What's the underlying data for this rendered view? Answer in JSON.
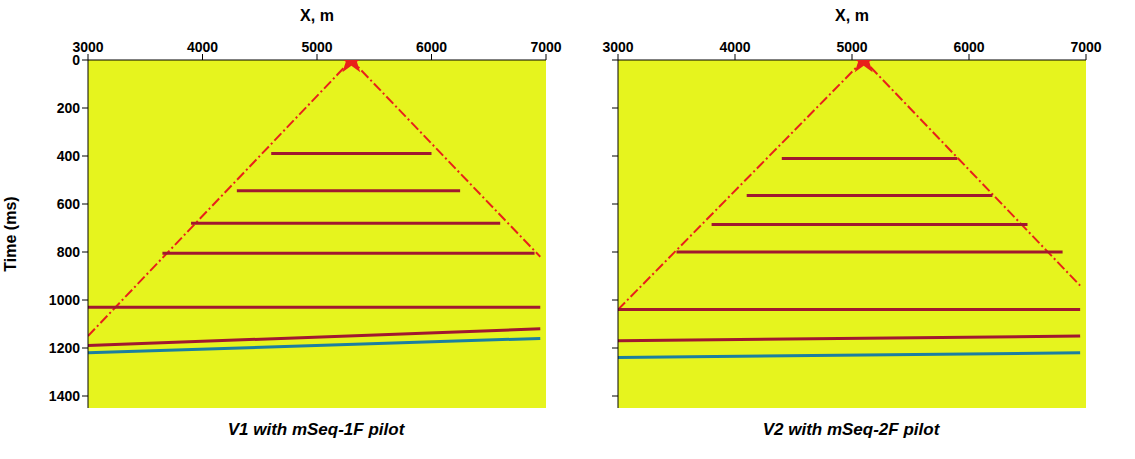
{
  "chart_data": [
    {
      "type": "line",
      "title": "V1 with mSeq-1F pilot",
      "x_label": "X, m",
      "y_label": "Time (ms)",
      "xlim": [
        3000,
        7000
      ],
      "xticks": [
        3000,
        4000,
        5000,
        6000,
        7000
      ],
      "ylim": [
        0,
        1450
      ],
      "yticks": [
        0,
        200,
        400,
        600,
        800,
        1000,
        1200,
        1400
      ],
      "grid": false,
      "series": [
        {
          "type": "line",
          "color": "#e8201a",
          "line_style": "dashed",
          "x": [
            3000,
            5300,
            6950
          ],
          "values": [
            1150,
            0,
            820
          ]
        },
        {
          "type": "line",
          "color": "#a01830",
          "line_style": "solid",
          "x": [
            4600,
            6000
          ],
          "values": [
            390,
            390
          ]
        },
        {
          "type": "line",
          "color": "#a01830",
          "line_style": "solid",
          "x": [
            4300,
            6250
          ],
          "values": [
            545,
            545
          ]
        },
        {
          "type": "line",
          "color": "#a01830",
          "line_style": "solid",
          "x": [
            3900,
            6600
          ],
          "values": [
            680,
            680
          ]
        },
        {
          "type": "line",
          "color": "#a01830",
          "line_style": "solid",
          "x": [
            3650,
            6900
          ],
          "values": [
            805,
            805
          ]
        },
        {
          "type": "line",
          "color": "#a01830",
          "line_style": "solid",
          "x": [
            3000,
            6950
          ],
          "values": [
            1030,
            1030
          ]
        },
        {
          "type": "line",
          "color": "#a01830",
          "line_style": "solid",
          "x": [
            3000,
            6950
          ],
          "values": [
            1190,
            1120
          ]
        },
        {
          "type": "line",
          "color": "#1a7fa0",
          "line_style": "solid",
          "x": [
            3000,
            6950
          ],
          "values": [
            1220,
            1160
          ]
        },
        {
          "type": "scatter",
          "color": "#e8201a",
          "marker": "star",
          "x": [
            5300
          ],
          "values": [
            0
          ]
        }
      ]
    },
    {
      "type": "line",
      "title": "V2 with mSeq-2F pilot",
      "x_label": "X, m",
      "xlim": [
        3000,
        7000
      ],
      "xticks": [
        3000,
        4000,
        5000,
        6000,
        7000
      ],
      "ylim": [
        0,
        1450
      ],
      "yticks": [
        0,
        200,
        400,
        600,
        800,
        1000,
        1200,
        1400
      ],
      "grid": false,
      "tick_labels": "x",
      "series": [
        {
          "type": "line",
          "color": "#e8201a",
          "line_style": "dashed",
          "x": [
            3000,
            5100,
            6950
          ],
          "values": [
            1040,
            0,
            940
          ]
        },
        {
          "type": "line",
          "color": "#a01830",
          "line_style": "solid",
          "x": [
            4400,
            5900
          ],
          "values": [
            410,
            410
          ]
        },
        {
          "type": "line",
          "color": "#a01830",
          "line_style": "solid",
          "x": [
            4100,
            6200
          ],
          "values": [
            565,
            565
          ]
        },
        {
          "type": "line",
          "color": "#a01830",
          "line_style": "solid",
          "x": [
            3800,
            6500
          ],
          "values": [
            685,
            685
          ]
        },
        {
          "type": "line",
          "color": "#a01830",
          "line_style": "solid",
          "x": [
            3500,
            6800
          ],
          "values": [
            800,
            800
          ]
        },
        {
          "type": "line",
          "color": "#a01830",
          "line_style": "solid",
          "x": [
            3000,
            6950
          ],
          "values": [
            1040,
            1040
          ]
        },
        {
          "type": "line",
          "color": "#a01830",
          "line_style": "solid",
          "x": [
            3000,
            6950
          ],
          "values": [
            1170,
            1150
          ]
        },
        {
          "type": "line",
          "color": "#1a7fa0",
          "line_style": "solid",
          "x": [
            3000,
            6950
          ],
          "values": [
            1240,
            1220
          ]
        },
        {
          "type": "scatter",
          "color": "#e8201a",
          "marker": "star",
          "x": [
            5100
          ],
          "values": [
            0
          ]
        }
      ]
    }
  ]
}
